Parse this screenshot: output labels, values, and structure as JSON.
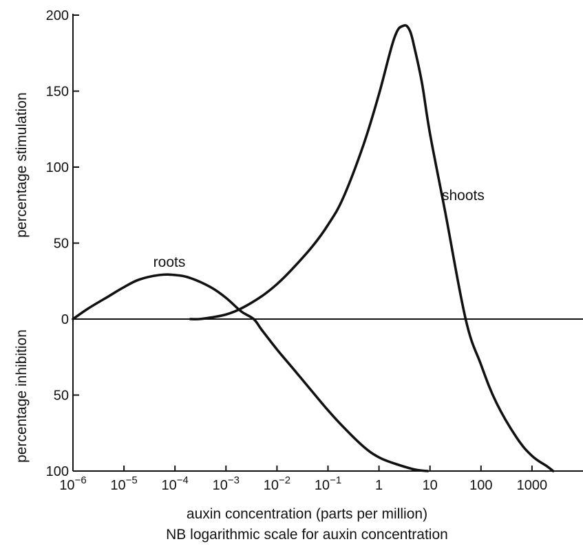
{
  "chart_data": {
    "type": "line",
    "x_scale": "log",
    "xlim": [
      1e-06,
      10000
    ],
    "ylim": [
      -100,
      200
    ],
    "x_tick_values": [
      1e-06,
      1e-05,
      0.0001,
      0.001,
      0.01,
      0.1,
      1,
      10,
      100,
      1000
    ],
    "x_tick_labels": [
      {
        "base": "10",
        "exp": "−6"
      },
      {
        "base": "10",
        "exp": "−5"
      },
      {
        "base": "10",
        "exp": "−4"
      },
      {
        "base": "10",
        "exp": "−3"
      },
      {
        "base": "10",
        "exp": "−2"
      },
      {
        "base": "10",
        "exp": "−1"
      },
      {
        "base": "1",
        "exp": ""
      },
      {
        "base": "10",
        "exp": ""
      },
      {
        "base": "100",
        "exp": ""
      },
      {
        "base": "1000",
        "exp": ""
      }
    ],
    "y_ticks": [
      {
        "value": 200,
        "label": "200"
      },
      {
        "value": 150,
        "label": "150"
      },
      {
        "value": 100,
        "label": "100"
      },
      {
        "value": 50,
        "label": "50"
      },
      {
        "value": 0,
        "label": "0"
      },
      {
        "value": -50,
        "label": "50"
      },
      {
        "value": -100,
        "label": "100"
      }
    ],
    "ylabel_upper": "percentage stimulation",
    "ylabel_lower": "percentage inhibition",
    "xlabel": "auxin concentration (parts per million)",
    "note": "NB logarithmic scale for auxin concentration",
    "grid": false,
    "series": [
      {
        "name": "roots",
        "x": [
          1e-06,
          2e-06,
          5e-06,
          1e-05,
          2e-05,
          5e-05,
          0.0001,
          0.0002,
          0.0005,
          0.001,
          0.002,
          0.0035,
          0.005,
          0.01,
          0.02,
          0.05,
          0.1,
          0.2,
          0.5,
          1,
          2,
          5,
          9
        ],
        "y": [
          0,
          7,
          15,
          21,
          26,
          29,
          29,
          27,
          21,
          14,
          5,
          0,
          -7,
          -20,
          -32,
          -48,
          -60,
          -71,
          -84,
          -91,
          -95,
          -99,
          -100
        ]
      },
      {
        "name": "shoots",
        "x": [
          0.0002,
          0.0003,
          0.0005,
          0.001,
          0.002,
          0.005,
          0.01,
          0.02,
          0.05,
          0.1,
          0.2,
          0.5,
          1,
          2,
          3,
          4,
          5,
          7,
          10,
          20,
          50,
          100,
          200,
          500,
          1000,
          2000,
          2600
        ],
        "y": [
          0,
          0,
          1,
          3,
          7,
          15,
          23,
          33,
          48,
          62,
          80,
          115,
          148,
          185,
          193,
          190,
          178,
          155,
          122,
          70,
          0,
          -30,
          -55,
          -78,
          -90,
          -97,
          -100
        ]
      }
    ]
  }
}
